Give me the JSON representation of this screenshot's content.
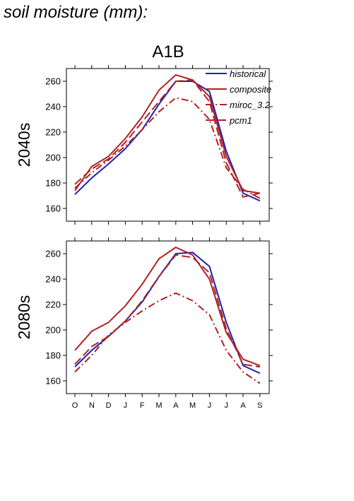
{
  "page": {
    "title": "soil moisture (mm):"
  },
  "chart_data": [
    {
      "type": "line",
      "title": "A1B",
      "ylabel": "2040s",
      "xlabel": "",
      "categories": [
        "O",
        "N",
        "D",
        "J",
        "F",
        "M",
        "A",
        "M",
        "J",
        "J",
        "A",
        "S"
      ],
      "ylim": [
        150,
        270
      ],
      "yticks": [
        160,
        180,
        200,
        220,
        240,
        260
      ],
      "legend": "top-right",
      "series": [
        {
          "name": "historical",
          "color": "#1f22b4",
          "dash": "solid",
          "values": [
            171,
            184,
            195,
            207,
            222,
            242,
            260,
            260,
            252,
            205,
            172,
            166
          ]
        },
        {
          "name": "composite",
          "color": "#b22222",
          "dash": "solid",
          "values": [
            174,
            193,
            201,
            215,
            232,
            253,
            265,
            261,
            248,
            201,
            174,
            172
          ]
        },
        {
          "name": "miroc_3.2",
          "color": "#b22222",
          "dash": "dashdot",
          "values": [
            176,
            188,
            198,
            209,
            222,
            236,
            247,
            244,
            230,
            192,
            175,
            168
          ]
        },
        {
          "name": "pcm1",
          "color": "#b22222",
          "dash": "longdash",
          "values": [
            179,
            191,
            199,
            212,
            228,
            244,
            260,
            261,
            244,
            196,
            169,
            172
          ]
        }
      ]
    },
    {
      "type": "line",
      "title": "",
      "ylabel": "2080s",
      "xlabel": "",
      "categories": [
        "O",
        "N",
        "D",
        "J",
        "F",
        "M",
        "A",
        "M",
        "J",
        "J",
        "A",
        "S"
      ],
      "ylim": [
        150,
        270
      ],
      "yticks": [
        160,
        180,
        200,
        220,
        240,
        260
      ],
      "series": [
        {
          "name": "historical",
          "color": "#1f22b4",
          "dash": "solid",
          "values": [
            171,
            184,
            195,
            207,
            222,
            242,
            260,
            261,
            250,
            206,
            172,
            166
          ]
        },
        {
          "name": "composite",
          "color": "#b22222",
          "dash": "solid",
          "values": [
            184,
            199,
            206,
            219,
            236,
            256,
            265,
            259,
            240,
            198,
            177,
            172
          ]
        },
        {
          "name": "miroc_3.2",
          "color": "#b22222",
          "dash": "dashdot",
          "values": [
            167,
            180,
            196,
            206,
            215,
            223,
            229,
            223,
            212,
            184,
            167,
            158
          ]
        },
        {
          "name": "pcm1",
          "color": "#b22222",
          "dash": "longdash",
          "values": [
            173,
            187,
            195,
            207,
            223,
            242,
            259,
            257,
            245,
            201,
            173,
            171
          ]
        }
      ]
    }
  ]
}
